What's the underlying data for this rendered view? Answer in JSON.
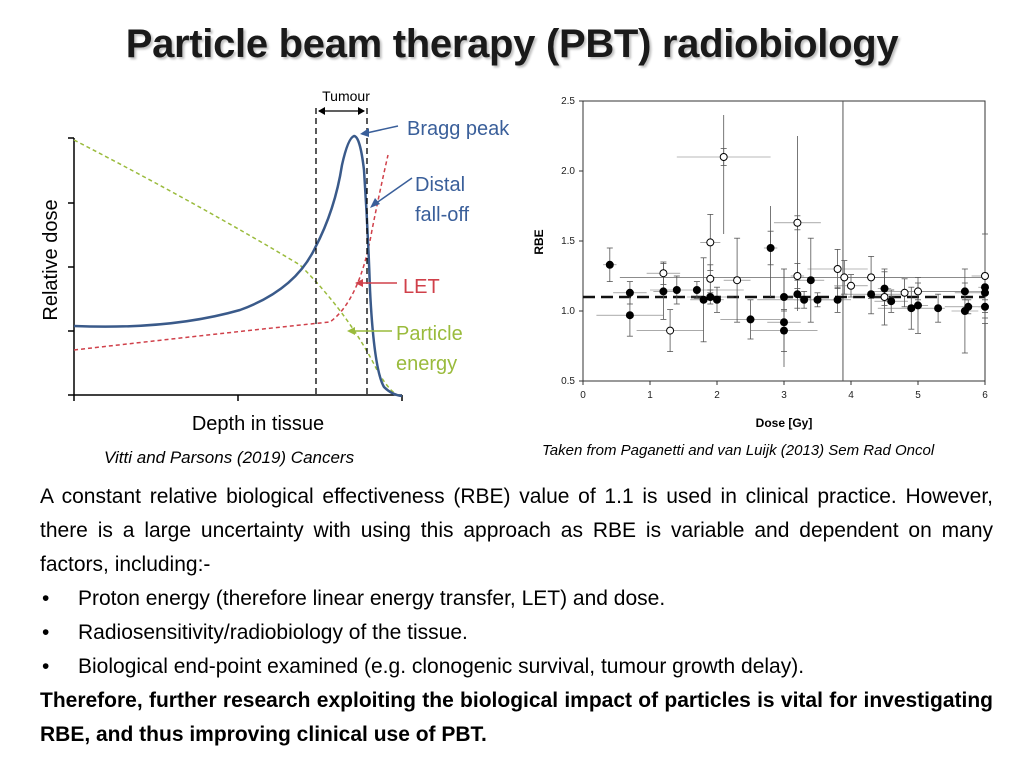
{
  "title": "Particle beam therapy (PBT) radiobiology",
  "left_figure": {
    "tumour_label": "Tumour",
    "y_axis_label": "Relative dose",
    "x_axis_label": "Depth in tissue",
    "annotations": {
      "bragg_peak": "Bragg peak",
      "distal_line1": "Distal",
      "distal_line2": "fall-off",
      "let": "LET",
      "particle_line1": "Particle",
      "particle_line2": "energy"
    },
    "colors": {
      "dose": "#3a5a8a",
      "let": "#d0404a",
      "energy": "#9abb3c",
      "annot_blue": "#3a5f9a"
    },
    "caption": "Vitti and Parsons (2019) Cancers"
  },
  "chart_data": {
    "type": "scatter",
    "xlabel": "Dose [Gy]",
    "ylabel": "RBE",
    "xlim": [
      0,
      6
    ],
    "ylim": [
      0.5,
      2.5
    ],
    "x_ticks": [
      "0",
      "1",
      "2",
      "3",
      "4",
      "5",
      "6"
    ],
    "y_ticks": [
      "0.5",
      "1.0",
      "1.5",
      "2.0",
      "2.5"
    ],
    "reference_line": {
      "y": 1.1,
      "style": "dashed"
    },
    "vertical_line": {
      "x": 3.88
    },
    "series": [
      {
        "name": "filled",
        "marker": "filled-circle",
        "points": [
          [
            0.4,
            1.33
          ],
          [
            0.7,
            1.13
          ],
          [
            0.7,
            0.97
          ],
          [
            1.2,
            1.14
          ],
          [
            1.4,
            1.15
          ],
          [
            1.7,
            1.15
          ],
          [
            1.8,
            1.08
          ],
          [
            1.9,
            1.1
          ],
          [
            2.0,
            1.08
          ],
          [
            2.5,
            0.94
          ],
          [
            2.8,
            1.45
          ],
          [
            3.0,
            0.92
          ],
          [
            3.0,
            0.86
          ],
          [
            3.0,
            1.1
          ],
          [
            3.2,
            1.12
          ],
          [
            3.3,
            1.08
          ],
          [
            3.4,
            1.22
          ],
          [
            3.5,
            1.08
          ],
          [
            3.8,
            1.08
          ],
          [
            4.3,
            1.12
          ],
          [
            4.5,
            1.16
          ],
          [
            4.6,
            1.07
          ],
          [
            4.9,
            1.02
          ],
          [
            5.0,
            1.04
          ],
          [
            5.3,
            1.02
          ],
          [
            5.7,
            1.14
          ],
          [
            5.7,
            1.0
          ],
          [
            5.75,
            1.03
          ],
          [
            6.0,
            1.17
          ],
          [
            6.0,
            1.13
          ],
          [
            6.0,
            1.03
          ]
        ]
      },
      {
        "name": "open",
        "marker": "open-circle",
        "points": [
          [
            1.2,
            1.27
          ],
          [
            1.3,
            0.86
          ],
          [
            1.9,
            1.49
          ],
          [
            1.9,
            1.23
          ],
          [
            2.1,
            2.1
          ],
          [
            2.3,
            1.22
          ],
          [
            3.2,
            1.63
          ],
          [
            3.2,
            1.25
          ],
          [
            3.8,
            1.3
          ],
          [
            3.9,
            1.24
          ],
          [
            4.0,
            1.18
          ],
          [
            4.3,
            1.24
          ],
          [
            4.5,
            1.1
          ],
          [
            4.8,
            1.13
          ],
          [
            5.0,
            1.14
          ],
          [
            6.0,
            1.25
          ]
        ]
      }
    ],
    "caption": "Taken from Paganetti and van Luijk (2013) Sem Rad Oncol"
  },
  "body": {
    "intro": "A constant relative biological effectiveness (RBE) value of 1.1 is used in clinical practice. However, there is a large uncertainty with using this approach as RBE is variable and dependent on many factors, including:-",
    "bullet_char": "•",
    "bullets": [
      "Proton energy (therefore linear energy transfer, LET) and dose.",
      "Radiosensitivity/radiobiology of the tissue.",
      "Biological end-point examined (e.g. clonogenic survival, tumour growth delay)."
    ],
    "conclusion": "Therefore, further research exploiting the biological impact of particles is vital for investigating RBE, and thus improving clinical use of PBT."
  }
}
